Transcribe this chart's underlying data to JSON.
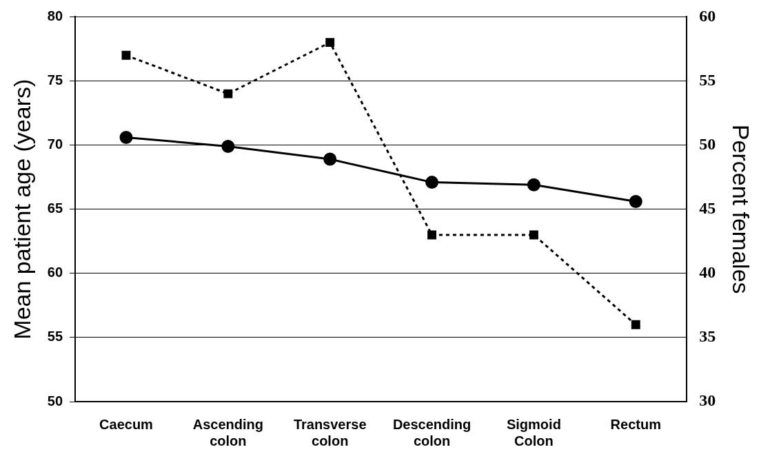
{
  "chart_data": {
    "type": "line",
    "categories": [
      "Caecum",
      "Ascending colon",
      "Transverse colon",
      "Descending colon",
      "Sigmoid Colon",
      "Rectum"
    ],
    "ylabel": "Mean patient age (years)",
    "y2label": "Percent females",
    "ylim": [
      50,
      80
    ],
    "yticks": [
      50,
      55,
      60,
      65,
      70,
      75,
      80
    ],
    "y2lim": [
      30,
      60
    ],
    "y2ticks": [
      30,
      35,
      40,
      45,
      50,
      55,
      60
    ],
    "grid": "y",
    "legend": false,
    "series": [
      {
        "color": "#000000",
        "marker": "circle",
        "line_style": "solid",
        "values": [
          70.6,
          69.9,
          68.9,
          67.1,
          66.9,
          65.6
        ]
      },
      {
        "color": "#000000",
        "marker": "square",
        "line_style": "dotted",
        "axis": "y2",
        "values": [
          57,
          54,
          58,
          43,
          43,
          36
        ]
      }
    ]
  }
}
